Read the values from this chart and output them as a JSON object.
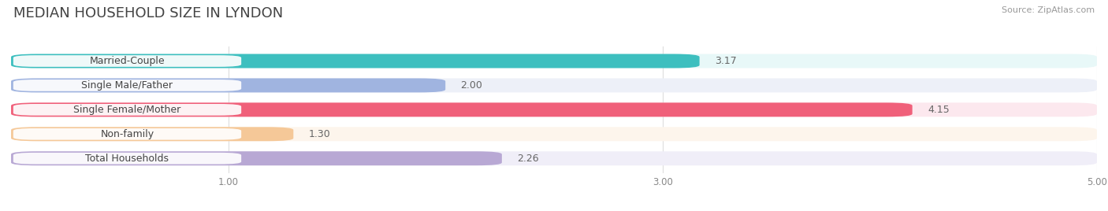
{
  "title": "MEDIAN HOUSEHOLD SIZE IN LYNDON",
  "source": "Source: ZipAtlas.com",
  "categories": [
    "Married-Couple",
    "Single Male/Father",
    "Single Female/Mother",
    "Non-family",
    "Total Households"
  ],
  "values": [
    3.17,
    2.0,
    4.15,
    1.3,
    2.26
  ],
  "bar_colors": [
    "#3dbfbf",
    "#a0b4e0",
    "#f0607a",
    "#f5c898",
    "#b8a8d4"
  ],
  "bar_bg_colors": [
    "#e8f8f8",
    "#edf0f8",
    "#fce8ee",
    "#fdf5ec",
    "#f0eef8"
  ],
  "xlim": [
    0.0,
    5.0
  ],
  "xticks": [
    1.0,
    3.0,
    5.0
  ],
  "xtick_labels": [
    "1.00",
    "3.00",
    "5.00"
  ],
  "value_labels": [
    "3.17",
    "2.00",
    "4.15",
    "1.30",
    "2.26"
  ],
  "background_color": "#ffffff",
  "title_fontsize": 13,
  "label_fontsize": 9,
  "value_fontsize": 9,
  "source_fontsize": 8
}
